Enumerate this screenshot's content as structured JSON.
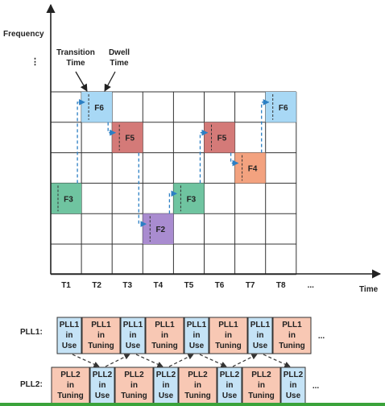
{
  "axes": {
    "y_label": "Frequency",
    "x_label": "Time",
    "y_ellipsis": "⋮",
    "x_ellipsis": "..."
  },
  "annotations": {
    "transition_time": [
      "Transition",
      "Time"
    ],
    "dwell_time": [
      "Dwell",
      "Time"
    ]
  },
  "grid": {
    "columns": [
      "T1",
      "T2",
      "T3",
      "T4",
      "T5",
      "T6",
      "T7",
      "T8"
    ],
    "row_count": 6
  },
  "hops": [
    {
      "label": "F3",
      "col": 0,
      "row": 3,
      "color": "#6fc4a0"
    },
    {
      "label": "F6",
      "col": 1,
      "row": 0,
      "color": "#a8d8f5"
    },
    {
      "label": "F5",
      "col": 2,
      "row": 1,
      "color": "#d47a78"
    },
    {
      "label": "F2",
      "col": 3,
      "row": 4,
      "color": "#a98cd0"
    },
    {
      "label": "F3",
      "col": 4,
      "row": 3,
      "color": "#6fc4a0"
    },
    {
      "label": "F5",
      "col": 5,
      "row": 1,
      "color": "#d47a78"
    },
    {
      "label": "F4",
      "col": 6,
      "row": 2,
      "color": "#f3a27f"
    },
    {
      "label": "F6",
      "col": 7,
      "row": 0,
      "color": "#a8d8f5"
    }
  ],
  "pll": {
    "pll1_label": "PLL1:",
    "pll2_label": "PLL2:",
    "pll1_blocks": [
      {
        "lines": [
          "PLL1",
          "in",
          "Use"
        ],
        "kind": "use"
      },
      {
        "lines": [
          "PLL1",
          "in",
          "Tuning"
        ],
        "kind": "tuning"
      },
      {
        "lines": [
          "PLL1",
          "in",
          "Use"
        ],
        "kind": "use"
      },
      {
        "lines": [
          "PLL1",
          "in",
          "Tuning"
        ],
        "kind": "tuning"
      },
      {
        "lines": [
          "PLL1",
          "in",
          "Use"
        ],
        "kind": "use"
      },
      {
        "lines": [
          "PLL1",
          "in",
          "Tuning"
        ],
        "kind": "tuning"
      },
      {
        "lines": [
          "PLL1",
          "in",
          "Use"
        ],
        "kind": "use"
      },
      {
        "lines": [
          "PLL1",
          "in",
          "Tuning"
        ],
        "kind": "tuning"
      }
    ],
    "pll2_blocks": [
      {
        "lines": [
          "PLL2",
          "in",
          "Tuning"
        ],
        "kind": "tuning"
      },
      {
        "lines": [
          "PLL2",
          "in",
          "Use"
        ],
        "kind": "use"
      },
      {
        "lines": [
          "PLL2",
          "in",
          "Tuning"
        ],
        "kind": "tuning"
      },
      {
        "lines": [
          "PLL2",
          "in",
          "Use"
        ],
        "kind": "use"
      },
      {
        "lines": [
          "PLL2",
          "in",
          "Tuning"
        ],
        "kind": "tuning"
      },
      {
        "lines": [
          "PLL2",
          "in",
          "Use"
        ],
        "kind": "use"
      },
      {
        "lines": [
          "PLL2",
          "in",
          "Tuning"
        ],
        "kind": "tuning"
      },
      {
        "lines": [
          "PLL2",
          "in",
          "Use"
        ],
        "kind": "use"
      }
    ],
    "row_ellipsis": "...",
    "use_color": "#c5e3f6",
    "tuning_color": "#f8c8b4"
  },
  "colors": {
    "arrow": "#2b7fc4",
    "grid": "#333333",
    "axis": "#222222"
  }
}
